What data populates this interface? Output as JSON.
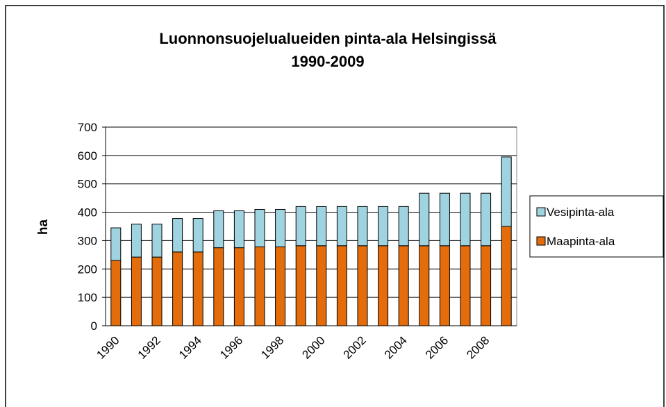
{
  "chart_data": {
    "type": "stacked_bar",
    "title": [
      "Luonnonsuojelualueiden pinta-ala Helsingissä",
      "1990-2009"
    ],
    "y_label": "ha",
    "categories": [
      "1990",
      null,
      "1992",
      null,
      "1994",
      null,
      "1996",
      null,
      "1998",
      null,
      "2000",
      null,
      "2002",
      null,
      "2004",
      null,
      "2006",
      null,
      "2008",
      null
    ],
    "series": [
      {
        "name": "Maapinta-ala",
        "color": "#e46c0a",
        "values": [
          230,
          242,
          242,
          260,
          260,
          275,
          275,
          278,
          278,
          282,
          282,
          282,
          282,
          282,
          282,
          282,
          282,
          282,
          282,
          350
        ]
      },
      {
        "name": "Vesipinta-ala",
        "color": "#9fd3e0",
        "values": [
          115,
          116,
          116,
          118,
          118,
          130,
          130,
          132,
          132,
          138,
          138,
          138,
          138,
          138,
          138,
          185,
          185,
          185,
          185,
          245
        ]
      }
    ],
    "ylim": [
      0,
      700
    ],
    "yticks": [
      0,
      100,
      200,
      300,
      400,
      500,
      600,
      700
    ],
    "grid": true,
    "legend": "right"
  }
}
